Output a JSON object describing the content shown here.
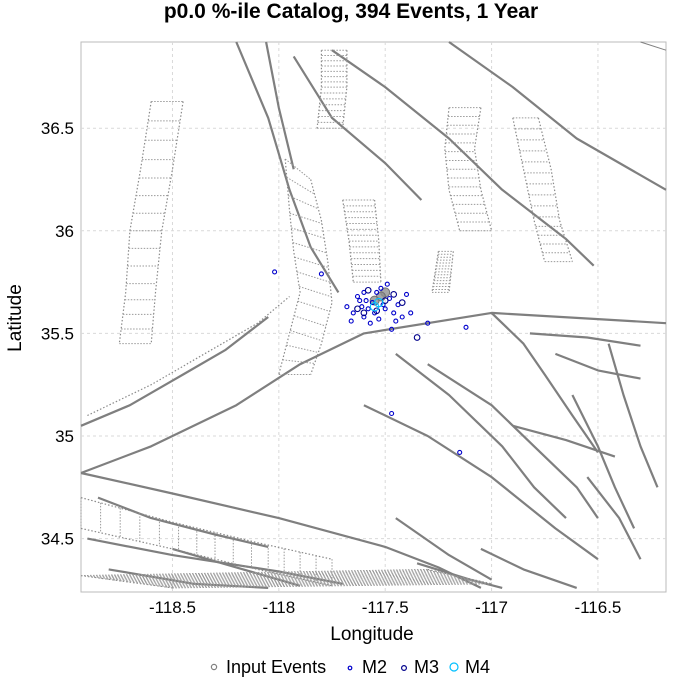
{
  "chart_data": {
    "type": "scatter",
    "title": "p0.0 %-ile Catalog, 394 Events, 1 Year",
    "xlabel": "Longitude",
    "ylabel": "Latitude",
    "xlim": [
      -118.93,
      -116.18
    ],
    "ylim": [
      34.24,
      36.92
    ],
    "x_ticks": [
      -118.5,
      -118,
      -117.5,
      -117,
      -116.5
    ],
    "x_tick_labels": [
      "-118.5",
      "-118",
      "-117.5",
      "-117",
      "-116.5"
    ],
    "y_ticks": [
      34.5,
      35,
      35.5,
      36,
      36.5
    ],
    "y_tick_labels": [
      "34.5",
      "35",
      "35.5",
      "36",
      "36.5"
    ],
    "grid": true,
    "legend_position": "bottom",
    "legend": [
      {
        "label": "Input Events",
        "color": "#808080"
      },
      {
        "label": "M2",
        "color": "#0000cc"
      },
      {
        "label": "M3",
        "color": "#00008b"
      },
      {
        "label": "M4",
        "color": "#00bfff"
      }
    ],
    "series": [
      {
        "name": "Input Events",
        "color": "#808080",
        "points": [
          [
            -117.5,
            35.7
          ],
          [
            -117.52,
            35.68
          ],
          [
            -117.55,
            35.66
          ]
        ]
      },
      {
        "name": "M2",
        "color": "#0000cc",
        "points": [
          [
            -118.02,
            35.8
          ],
          [
            -117.8,
            35.79
          ],
          [
            -117.68,
            35.63
          ],
          [
            -117.65,
            35.6
          ],
          [
            -117.62,
            35.66
          ],
          [
            -117.6,
            35.58
          ],
          [
            -117.58,
            35.62
          ],
          [
            -117.56,
            35.65
          ],
          [
            -117.54,
            35.7
          ],
          [
            -117.52,
            35.72
          ],
          [
            -117.5,
            35.62
          ],
          [
            -117.48,
            35.67
          ],
          [
            -117.46,
            35.6
          ],
          [
            -117.44,
            35.64
          ],
          [
            -117.42,
            35.58
          ],
          [
            -117.4,
            35.69
          ],
          [
            -117.6,
            35.7
          ],
          [
            -117.57,
            35.55
          ],
          [
            -117.53,
            35.57
          ],
          [
            -117.61,
            35.63
          ],
          [
            -117.47,
            35.52
          ],
          [
            -117.38,
            35.6
          ],
          [
            -117.3,
            35.55
          ],
          [
            -117.12,
            35.53
          ],
          [
            -117.47,
            35.11
          ],
          [
            -117.15,
            34.92
          ],
          [
            -117.66,
            35.56
          ],
          [
            -117.63,
            35.68
          ],
          [
            -117.55,
            35.6
          ],
          [
            -117.51,
            35.64
          ],
          [
            -117.59,
            35.66
          ],
          [
            -117.45,
            35.56
          ],
          [
            -117.49,
            35.74
          ]
        ]
      },
      {
        "name": "M3",
        "color": "#00008b",
        "points": [
          [
            -117.35,
            35.48
          ],
          [
            -117.42,
            35.65
          ],
          [
            -117.58,
            35.71
          ],
          [
            -117.54,
            35.61
          ],
          [
            -117.5,
            35.66
          ],
          [
            -117.46,
            35.69
          ],
          [
            -117.6,
            35.6
          ],
          [
            -117.63,
            35.62
          ]
        ]
      },
      {
        "name": "M4",
        "color": "#00bfff",
        "points": [
          [
            -117.53,
            35.65
          ],
          [
            -117.55,
            35.63
          ]
        ]
      }
    ],
    "faults": [
      [
        [
          -118.93,
          35.05
        ],
        [
          -118.7,
          35.15
        ],
        [
          -118.45,
          35.3
        ],
        [
          -118.25,
          35.42
        ],
        [
          -118.05,
          35.58
        ]
      ],
      [
        [
          -118.93,
          34.82
        ],
        [
          -118.6,
          34.95
        ],
        [
          -118.2,
          35.15
        ],
        [
          -117.9,
          35.35
        ],
        [
          -117.6,
          35.5
        ],
        [
          -117.0,
          35.6
        ],
        [
          -116.5,
          35.57
        ],
        [
          -116.18,
          35.55
        ]
      ],
      [
        [
          -118.93,
          34.82
        ],
        [
          -118.5,
          34.72
        ],
        [
          -118.0,
          34.6
        ],
        [
          -117.5,
          34.46
        ],
        [
          -117.25,
          34.36
        ],
        [
          -117.05,
          34.26
        ]
      ],
      [
        [
          -118.9,
          34.5
        ],
        [
          -118.5,
          34.42
        ],
        [
          -118.0,
          34.34
        ],
        [
          -117.7,
          34.28
        ]
      ],
      [
        [
          -118.2,
          36.92
        ],
        [
          -118.05,
          36.55
        ],
        [
          -117.95,
          36.2
        ],
        [
          -117.85,
          35.92
        ],
        [
          -117.72,
          35.7
        ]
      ],
      [
        [
          -118.06,
          36.92
        ],
        [
          -118.0,
          36.6
        ],
        [
          -117.93,
          36.3
        ]
      ],
      [
        [
          -117.93,
          36.85
        ],
        [
          -117.75,
          36.55
        ],
        [
          -117.5,
          36.33
        ],
        [
          -117.33,
          36.15
        ]
      ],
      [
        [
          -117.75,
          36.88
        ],
        [
          -117.5,
          36.7
        ],
        [
          -117.2,
          36.45
        ],
        [
          -116.95,
          36.2
        ],
        [
          -116.65,
          35.96
        ],
        [
          -116.52,
          35.83
        ]
      ],
      [
        [
          -117.2,
          36.92
        ],
        [
          -116.9,
          36.7
        ],
        [
          -116.6,
          36.45
        ],
        [
          -116.18,
          36.2
        ]
      ],
      [
        [
          -117.6,
          35.15
        ],
        [
          -117.3,
          35.0
        ],
        [
          -117.0,
          34.8
        ],
        [
          -116.7,
          34.55
        ],
        [
          -116.5,
          34.4
        ]
      ],
      [
        [
          -117.45,
          35.4
        ],
        [
          -117.2,
          35.2
        ],
        [
          -116.95,
          34.95
        ],
        [
          -116.8,
          34.75
        ],
        [
          -116.65,
          34.6
        ]
      ],
      [
        [
          -117.3,
          35.35
        ],
        [
          -117.0,
          35.15
        ],
        [
          -116.8,
          34.95
        ],
        [
          -116.6,
          34.75
        ],
        [
          -116.5,
          34.6
        ]
      ],
      [
        [
          -117.0,
          35.6
        ],
        [
          -116.85,
          35.45
        ],
        [
          -116.75,
          35.3
        ],
        [
          -116.62,
          35.1
        ],
        [
          -116.5,
          34.92
        ]
      ],
      [
        [
          -116.82,
          35.5
        ],
        [
          -116.55,
          35.48
        ],
        [
          -116.3,
          35.44
        ]
      ],
      [
        [
          -116.7,
          35.4
        ],
        [
          -116.5,
          35.32
        ],
        [
          -116.3,
          35.28
        ]
      ],
      [
        [
          -116.45,
          35.45
        ],
        [
          -116.38,
          35.2
        ],
        [
          -116.3,
          34.95
        ],
        [
          -116.22,
          34.75
        ]
      ],
      [
        [
          -116.62,
          35.2
        ],
        [
          -116.5,
          34.95
        ],
        [
          -116.42,
          34.75
        ],
        [
          -116.33,
          34.55
        ]
      ],
      [
        [
          -116.9,
          35.05
        ],
        [
          -116.65,
          34.98
        ],
        [
          -116.42,
          34.9
        ]
      ],
      [
        [
          -116.55,
          34.8
        ],
        [
          -116.4,
          34.6
        ],
        [
          -116.3,
          34.4
        ]
      ],
      [
        [
          -117.45,
          34.6
        ],
        [
          -117.2,
          34.42
        ],
        [
          -117.0,
          34.3
        ]
      ],
      [
        [
          -117.05,
          34.45
        ],
        [
          -116.85,
          34.35
        ],
        [
          -116.6,
          34.26
        ]
      ],
      [
        [
          -117.35,
          34.38
        ],
        [
          -117.1,
          34.3
        ],
        [
          -116.95,
          34.26
        ]
      ],
      [
        [
          -118.5,
          34.45
        ],
        [
          -118.2,
          34.36
        ],
        [
          -117.9,
          34.27
        ]
      ],
      [
        [
          -118.8,
          34.35
        ],
        [
          -118.4,
          34.28
        ],
        [
          -118.05,
          34.26
        ]
      ],
      [
        [
          -118.85,
          34.7
        ],
        [
          -118.6,
          34.6
        ],
        [
          -118.3,
          34.52
        ],
        [
          -118.05,
          34.46
        ]
      ],
      [
        [
          -116.3,
          36.92
        ],
        [
          -116.18,
          36.88
        ]
      ]
    ],
    "dotted_faults": [
      [
        [
          -118.6,
          36.63
        ],
        [
          -118.65,
          36.3
        ],
        [
          -118.7,
          36.0
        ],
        [
          -118.72,
          35.7
        ],
        [
          -118.75,
          35.45
        ]
      ],
      [
        [
          -118.45,
          36.63
        ],
        [
          -118.5,
          36.3
        ],
        [
          -118.55,
          36.0
        ],
        [
          -118.58,
          35.7
        ],
        [
          -118.6,
          35.45
        ]
      ],
      [
        [
          -117.97,
          36.35
        ],
        [
          -117.95,
          36.1
        ],
        [
          -117.93,
          35.9
        ],
        [
          -117.9,
          35.7
        ],
        [
          -117.95,
          35.5
        ],
        [
          -118.0,
          35.3
        ]
      ],
      [
        [
          -117.85,
          36.25
        ],
        [
          -117.8,
          36.05
        ],
        [
          -117.77,
          35.85
        ],
        [
          -117.75,
          35.65
        ],
        [
          -117.8,
          35.45
        ],
        [
          -117.85,
          35.3
        ]
      ],
      [
        [
          -117.7,
          36.15
        ],
        [
          -117.67,
          35.95
        ],
        [
          -117.65,
          35.75
        ]
      ],
      [
        [
          -117.55,
          36.15
        ],
        [
          -117.53,
          35.95
        ],
        [
          -117.52,
          35.75
        ]
      ],
      [
        [
          -117.2,
          36.6
        ],
        [
          -117.22,
          36.4
        ],
        [
          -117.2,
          36.2
        ],
        [
          -117.15,
          36.0
        ]
      ],
      [
        [
          -117.05,
          36.6
        ],
        [
          -117.08,
          36.4
        ],
        [
          -117.05,
          36.2
        ],
        [
          -117.0,
          36.0
        ]
      ],
      [
        [
          -117.25,
          35.9
        ],
        [
          -117.28,
          35.7
        ]
      ],
      [
        [
          -117.18,
          35.9
        ],
        [
          -117.2,
          35.7
        ]
      ],
      [
        [
          -116.9,
          36.55
        ],
        [
          -116.85,
          36.3
        ],
        [
          -116.8,
          36.05
        ],
        [
          -116.75,
          35.85
        ]
      ],
      [
        [
          -116.78,
          36.55
        ],
        [
          -116.72,
          36.3
        ],
        [
          -116.68,
          36.05
        ],
        [
          -116.62,
          35.85
        ]
      ],
      [
        [
          -117.8,
          36.88
        ],
        [
          -117.8,
          36.7
        ],
        [
          -117.82,
          36.5
        ]
      ],
      [
        [
          -117.68,
          36.88
        ],
        [
          -117.68,
          36.7
        ],
        [
          -117.7,
          36.5
        ]
      ],
      [
        [
          -118.93,
          34.7
        ],
        [
          -118.5,
          34.58
        ],
        [
          -118.1,
          34.48
        ],
        [
          -117.75,
          34.4
        ]
      ],
      [
        [
          -118.93,
          34.55
        ],
        [
          -118.5,
          34.45
        ],
        [
          -118.1,
          34.35
        ],
        [
          -117.75,
          34.27
        ]
      ],
      [
        [
          -118.93,
          34.32
        ],
        [
          -118.5,
          34.26
        ]
      ],
      [
        [
          -117.3,
          34.35
        ],
        [
          -117.0,
          34.28
        ]
      ],
      [
        [
          -118.9,
          35.1
        ],
        [
          -118.6,
          35.25
        ],
        [
          -118.35,
          35.4
        ],
        [
          -118.1,
          35.55
        ],
        [
          -117.95,
          35.68
        ]
      ]
    ]
  }
}
